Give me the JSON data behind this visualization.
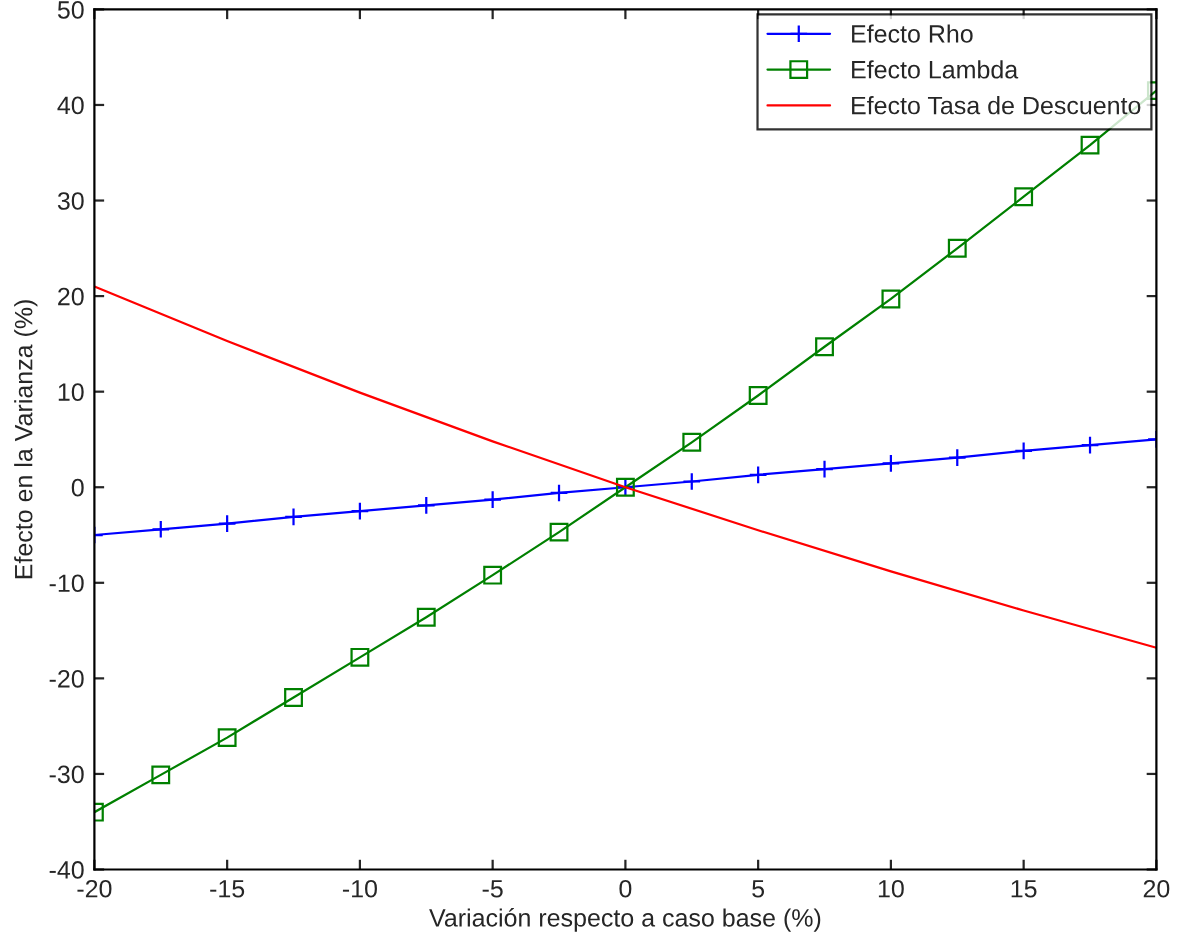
{
  "chart_data": {
    "type": "line",
    "xlabel": "Variación respecto a caso base (%)",
    "ylabel": "Efecto en la Varianza (%)",
    "series": [
      {
        "name": "Efecto Rho",
        "color": "#0000ff",
        "marker": "cross",
        "x": [
          -20,
          -17.5,
          -15,
          -12.5,
          -10,
          -7.5,
          -5,
          -2.5,
          0,
          2.5,
          5,
          7.5,
          10,
          12.5,
          15,
          17.5,
          20
        ],
        "values": [
          -5,
          -4.4,
          -3.8,
          -3.1,
          -2.5,
          -1.9,
          -1.3,
          -0.6,
          0,
          0.6,
          1.3,
          1.9,
          2.5,
          3.1,
          3.8,
          4.4,
          5
        ]
      },
      {
        "name": "Efecto Lambda",
        "color": "#008000",
        "marker": "square",
        "x": [
          -20,
          -17.5,
          -15,
          -12.5,
          -10,
          -7.5,
          -5,
          -2.5,
          0,
          2.5,
          5,
          7.5,
          10,
          12.5,
          15,
          17.5,
          20
        ],
        "values": [
          -34,
          -30.1,
          -26.2,
          -22,
          -17.8,
          -13.6,
          -9.2,
          -4.7,
          0,
          4.7,
          9.6,
          14.7,
          19.7,
          25,
          30.4,
          35.8,
          41.5
        ]
      },
      {
        "name": "Efecto Tasa de Descuento",
        "color": "#ff0000",
        "marker": "none",
        "x": [
          -20,
          -15,
          -10,
          -5,
          0,
          5,
          10,
          15,
          20
        ],
        "values": [
          21,
          15.3,
          9.9,
          4.8,
          0,
          -4.5,
          -8.8,
          -12.9,
          -16.8
        ]
      }
    ],
    "xlim": [
      -20,
      20
    ],
    "xticks": [
      -20,
      -15,
      -10,
      -5,
      0,
      5,
      10,
      15,
      20
    ],
    "ylim": [
      -40,
      50
    ],
    "yticks": [
      -40,
      -30,
      -20,
      -10,
      0,
      10,
      20,
      30,
      40,
      50
    ],
    "legend": "top right",
    "grid": false
  }
}
